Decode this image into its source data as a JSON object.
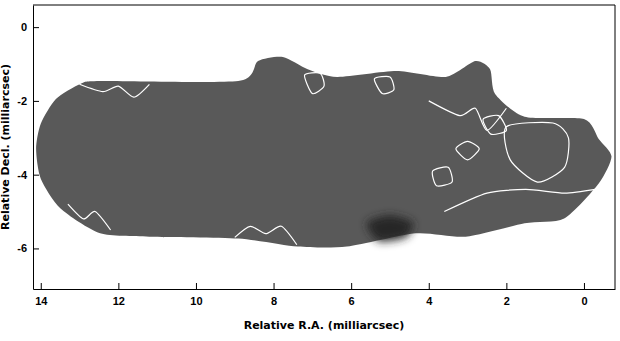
{
  "chart_data": {
    "type": "contour_image",
    "x_label": "Relative R.A. (milliarcsec)",
    "y_label": "Relative Decl. (milliarcsec)",
    "xlim": [
      14.2,
      -0.8
    ],
    "ylim": [
      -7.1,
      0.6
    ],
    "xticks": [
      14,
      12,
      10,
      8,
      6,
      4,
      2,
      0
    ],
    "yticks": [
      0,
      -2,
      -4,
      -6
    ],
    "color": "#595959",
    "outline": [
      [
        14.12,
        -3.3
      ],
      [
        14.0,
        -2.62
      ],
      [
        13.61,
        -1.95
      ],
      [
        12.98,
        -1.54
      ],
      [
        12.47,
        -1.46
      ],
      [
        8.91,
        -1.46
      ],
      [
        8.4,
        -0.92
      ],
      [
        7.76,
        -0.81
      ],
      [
        7.12,
        -1.14
      ],
      [
        6.36,
        -1.35
      ],
      [
        4.83,
        -1.19
      ],
      [
        3.56,
        -1.35
      ],
      [
        2.8,
        -0.92
      ],
      [
        2.42,
        -1.14
      ],
      [
        2.29,
        -1.81
      ],
      [
        1.53,
        -2.43
      ],
      [
        0,
        -2.49
      ],
      [
        -0.38,
        -3.03
      ],
      [
        -0.71,
        -3.51
      ],
      [
        -0.38,
        -4.24
      ],
      [
        0.51,
        -5.19
      ],
      [
        1.53,
        -5.32
      ],
      [
        3.05,
        -5.68
      ],
      [
        4.33,
        -5.59
      ],
      [
        6.11,
        -5.95
      ],
      [
        7.38,
        -5.95
      ],
      [
        8.91,
        -5.73
      ],
      [
        11.2,
        -5.68
      ],
      [
        12.47,
        -5.59
      ],
      [
        13.49,
        -4.92
      ],
      [
        14.0,
        -4.11
      ]
    ],
    "dark_region": {
      "color": "#262626",
      "points": [
        [
          5.6,
          -5.3
        ],
        [
          5.0,
          -5.1
        ],
        [
          4.4,
          -5.3
        ],
        [
          4.6,
          -5.7
        ],
        [
          5.3,
          -5.8
        ]
      ]
    },
    "contours": [
      [
        [
          3.3,
          -3.3
        ],
        [
          3.0,
          -3.1
        ],
        [
          2.7,
          -3.3
        ],
        [
          3.0,
          -3.6
        ]
      ],
      [
        [
          2.0,
          -2.7
        ],
        [
          0.8,
          -2.6
        ],
        [
          0.4,
          -3.0
        ],
        [
          0.5,
          -3.8
        ],
        [
          1.2,
          -4.2
        ],
        [
          1.9,
          -3.6
        ]
      ],
      [
        [
          2.6,
          -2.5
        ],
        [
          2.2,
          -2.4
        ],
        [
          2.0,
          -2.8
        ],
        [
          2.4,
          -2.9
        ]
      ],
      [
        [
          3.9,
          -3.9
        ],
        [
          3.5,
          -3.8
        ],
        [
          3.4,
          -4.2
        ],
        [
          3.8,
          -4.3
        ]
      ],
      [
        [
          7.2,
          -1.3
        ],
        [
          6.8,
          -1.25
        ],
        [
          6.7,
          -1.6
        ],
        [
          7.0,
          -1.8
        ]
      ],
      [
        [
          5.4,
          -1.4
        ],
        [
          5.0,
          -1.35
        ],
        [
          4.9,
          -1.7
        ],
        [
          5.2,
          -1.8
        ]
      ]
    ],
    "contour_lines": [
      [
        [
          3.6,
          -5.0
        ],
        [
          2.5,
          -4.5
        ],
        [
          1.5,
          -4.4
        ],
        [
          0.5,
          -4.5
        ],
        [
          -0.3,
          -4.4
        ]
      ],
      [
        [
          4.0,
          -2.0
        ],
        [
          3.2,
          -2.4
        ],
        [
          2.8,
          -2.2
        ],
        [
          2.5,
          -2.8
        ],
        [
          2.0,
          -2.2
        ]
      ],
      [
        [
          13.0,
          -1.55
        ],
        [
          12.4,
          -1.75
        ],
        [
          12.0,
          -1.6
        ],
        [
          11.6,
          -1.9
        ],
        [
          11.2,
          -1.55
        ]
      ],
      [
        [
          9.0,
          -5.7
        ],
        [
          8.6,
          -5.4
        ],
        [
          8.2,
          -5.6
        ],
        [
          7.8,
          -5.4
        ],
        [
          7.4,
          -5.9
        ]
      ],
      [
        [
          13.3,
          -4.8
        ],
        [
          12.9,
          -5.2
        ],
        [
          12.6,
          -5.0
        ],
        [
          12.2,
          -5.5
        ]
      ]
    ],
    "grid": false
  }
}
